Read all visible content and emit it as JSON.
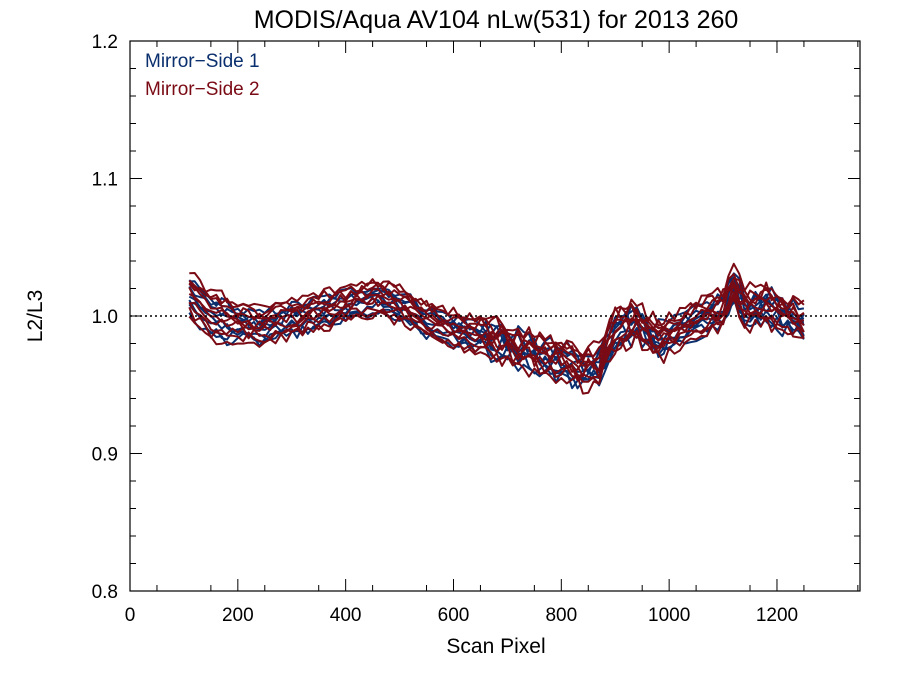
{
  "chart_data": {
    "type": "line",
    "title": "MODIS/Aqua AV104 nLw(531) for 2013 260",
    "xlabel": "Scan Pixel",
    "ylabel": "L2/L3",
    "xlim": [
      0,
      1354
    ],
    "ylim": [
      0.8,
      1.2
    ],
    "xticks": [
      0,
      200,
      400,
      600,
      800,
      1000,
      1200
    ],
    "xtick_labels": [
      "0",
      "200",
      "400",
      "600",
      "800",
      "1000",
      "1200"
    ],
    "yticks": [
      0.8,
      0.9,
      1.0,
      1.1,
      1.2
    ],
    "ytick_labels": [
      "0.8",
      "0.9",
      "1.0",
      "1.1",
      "1.2"
    ],
    "reference_line": {
      "y": 1.0,
      "style": "dotted"
    },
    "grid": false,
    "legend": {
      "placement": "top-left"
    },
    "colors": {
      "mirror_side_1": "#0a2f6e",
      "mirror_side_2": "#7a0a14"
    },
    "base_profile": {
      "x": [
        110,
        150,
        200,
        240,
        300,
        350,
        400,
        450,
        500,
        550,
        600,
        650,
        700,
        750,
        800,
        840,
        870,
        900,
        940,
        980,
        1020,
        1060,
        1100,
        1120,
        1140,
        1180,
        1220,
        1250
      ],
      "y": [
        1.015,
        1.0,
        0.995,
        0.992,
        0.998,
        1.003,
        1.008,
        1.013,
        1.008,
        0.997,
        0.99,
        0.986,
        0.98,
        0.972,
        0.968,
        0.96,
        0.963,
        0.99,
        0.995,
        0.982,
        0.99,
        0.998,
        1.005,
        1.022,
        1.005,
        1.008,
        1.0,
        0.995
      ]
    },
    "series": [
      {
        "group": "Mirror-Side 1",
        "offset": 0.004
      },
      {
        "group": "Mirror-Side 1",
        "offset": -0.003
      },
      {
        "group": "Mirror-Side 1",
        "offset": 0.009
      },
      {
        "group": "Mirror-Side 1",
        "offset": -0.008
      },
      {
        "group": "Mirror-Side 1",
        "offset": 0.001
      },
      {
        "group": "Mirror-Side 1",
        "offset": -0.011
      },
      {
        "group": "Mirror-Side 1",
        "offset": 0.006
      },
      {
        "group": "Mirror-Side 1",
        "offset": -0.005
      },
      {
        "group": "Mirror-Side 2",
        "offset": 0.002
      },
      {
        "group": "Mirror-Side 2",
        "offset": -0.006
      },
      {
        "group": "Mirror-Side 2",
        "offset": 0.011
      },
      {
        "group": "Mirror-Side 2",
        "offset": -0.012
      },
      {
        "group": "Mirror-Side 2",
        "offset": 0.005
      },
      {
        "group": "Mirror-Side 2",
        "offset": -0.002
      },
      {
        "group": "Mirror-Side 2",
        "offset": 0.008
      },
      {
        "group": "Mirror-Side 2",
        "offset": -0.009
      },
      {
        "group": "Mirror-Side 2",
        "offset": 0.0
      },
      {
        "group": "Mirror-Side 2",
        "offset": 0.013
      }
    ]
  },
  "legend": {
    "side1": "Mirror−Side 1",
    "side2": "Mirror−Side 2"
  }
}
